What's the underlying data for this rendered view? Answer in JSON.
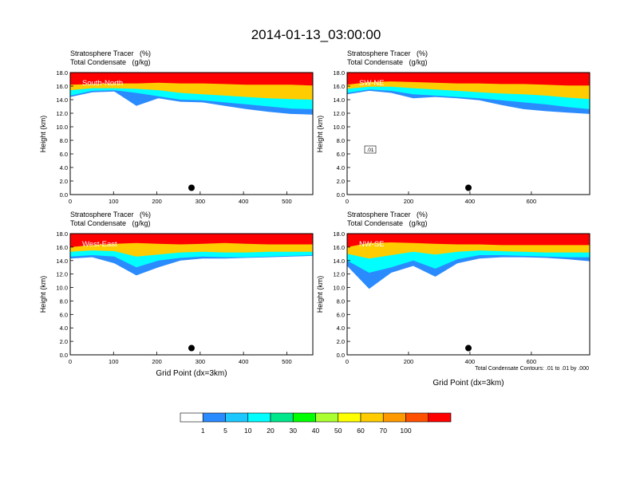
{
  "page_title": "2014-01-13_03:00:00",
  "chart_data": [
    {
      "type": "heatmap",
      "field_title": "Stratosphere Tracer   (%)",
      "contour_title": "Total Condensate   (g/kg)",
      "section_label": "South-North",
      "xlabel": "",
      "ylabel": "Height (km)",
      "xlim": [
        0,
        560
      ],
      "ylim": [
        0,
        18
      ],
      "x_ticks": [
        0,
        100,
        200,
        300,
        400,
        500
      ],
      "y_ticks": [
        0.0,
        2.0,
        4.0,
        6.0,
        8.0,
        10.0,
        12.0,
        14.0,
        16.0,
        18.0
      ],
      "marker": {
        "x": 280,
        "y": 1.0
      },
      "contour_labels": [],
      "tracer_bands": [
        {
          "level": 100,
          "x": [
            0,
            560
          ],
          "base": [
            16.2,
            16.3,
            16.4,
            16.4,
            16.5,
            16.4,
            16.4,
            16.3,
            16.2,
            16.2,
            16.2,
            16.1
          ]
        },
        {
          "level": 60,
          "x": [
            0,
            560
          ],
          "base": [
            15.4,
            15.7,
            15.7,
            15.6,
            15.4,
            15.0,
            14.8,
            14.6,
            14.4,
            14.2,
            14.1,
            14.0
          ]
        },
        {
          "level": 20,
          "x": [
            0,
            560
          ],
          "base": [
            14.6,
            15.3,
            15.4,
            15.0,
            14.5,
            14.0,
            13.9,
            13.6,
            13.3,
            13.0,
            12.7,
            12.6
          ]
        },
        {
          "level": 1,
          "x": [
            0,
            560
          ],
          "base": [
            14.4,
            15.1,
            15.2,
            13.1,
            14.2,
            13.7,
            13.6,
            13.1,
            12.6,
            12.2,
            11.9,
            11.8
          ]
        }
      ]
    },
    {
      "type": "heatmap",
      "field_title": "Stratosphere Tracer   (%)",
      "contour_title": "Total Condensate   (g/kg)",
      "section_label": "SW-NE",
      "xlabel": "",
      "ylabel": "Height (km)",
      "xlim": [
        0,
        790
      ],
      "ylim": [
        0,
        18
      ],
      "x_ticks": [
        0,
        200,
        400,
        600
      ],
      "y_ticks": [
        0.0,
        2.0,
        4.0,
        6.0,
        8.0,
        10.0,
        12.0,
        14.0,
        16.0,
        18.0
      ],
      "marker": {
        "x": 395,
        "y": 1.0
      },
      "contour_labels": [
        ".01"
      ],
      "tracer_bands": [
        {
          "level": 100,
          "x": [
            0,
            790
          ],
          "base": [
            16.2,
            16.6,
            16.7,
            16.6,
            16.5,
            16.4,
            16.4,
            16.3,
            16.3,
            16.2,
            16.1,
            16.1
          ]
        },
        {
          "level": 60,
          "x": [
            0,
            790
          ],
          "base": [
            15.6,
            15.9,
            15.9,
            15.7,
            15.5,
            15.3,
            15.1,
            14.9,
            14.8,
            14.6,
            14.3,
            14.1
          ]
        },
        {
          "level": 20,
          "x": [
            0,
            790
          ],
          "base": [
            15.0,
            15.5,
            15.3,
            14.8,
            14.6,
            14.4,
            14.2,
            13.9,
            13.6,
            13.3,
            12.9,
            12.6
          ]
        },
        {
          "level": 1,
          "x": [
            0,
            790
          ],
          "base": [
            14.8,
            15.3,
            15.0,
            14.2,
            14.4,
            14.2,
            13.9,
            13.2,
            12.6,
            12.3,
            12.1,
            11.9
          ]
        }
      ]
    },
    {
      "type": "heatmap",
      "field_title": "Stratosphere Tracer   (%)",
      "contour_title": "Total Condensate   (g/kg)",
      "section_label": "West-East",
      "xlabel": "Grid Point (dx=3km)",
      "ylabel": "Height (km)",
      "xlim": [
        0,
        560
      ],
      "ylim": [
        0,
        18
      ],
      "x_ticks": [
        0,
        100,
        200,
        300,
        400,
        500
      ],
      "y_ticks": [
        0.0,
        2.0,
        4.0,
        6.0,
        8.0,
        10.0,
        12.0,
        14.0,
        16.0,
        18.0
      ],
      "marker": {
        "x": 280,
        "y": 1.0
      },
      "contour_labels": [],
      "tracer_bands": [
        {
          "level": 100,
          "x": [
            0,
            560
          ],
          "base": [
            16.0,
            16.3,
            16.5,
            16.6,
            16.5,
            16.4,
            16.5,
            16.6,
            16.5,
            16.4,
            16.4,
            16.4
          ]
        },
        {
          "level": 60,
          "x": [
            0,
            560
          ],
          "base": [
            15.3,
            15.5,
            15.4,
            14.6,
            14.9,
            15.2,
            15.3,
            15.2,
            15.2,
            15.3,
            15.3,
            15.3
          ]
        },
        {
          "level": 20,
          "x": [
            0,
            560
          ],
          "base": [
            14.6,
            14.8,
            14.6,
            13.0,
            14.0,
            14.4,
            14.6,
            14.5,
            14.5,
            14.6,
            14.7,
            14.8
          ]
        },
        {
          "level": 1,
          "x": [
            0,
            560
          ],
          "base": [
            14.3,
            14.5,
            13.6,
            11.8,
            13.0,
            14.0,
            14.3,
            14.3,
            14.4,
            14.5,
            14.6,
            14.7
          ]
        }
      ]
    },
    {
      "type": "heatmap",
      "field_title": "Stratosphere Tracer   (%)",
      "contour_title": "Total Condensate   (g/kg)",
      "section_label": "NW-SE",
      "xlabel": "Grid Point (dx=3km)",
      "ylabel": "Height (km)",
      "xlim": [
        0,
        790
      ],
      "ylim": [
        0,
        18
      ],
      "x_ticks": [
        0,
        200,
        400,
        600
      ],
      "y_ticks": [
        0.0,
        2.0,
        4.0,
        6.0,
        8.0,
        10.0,
        12.0,
        14.0,
        16.0,
        18.0
      ],
      "marker": {
        "x": 395,
        "y": 1.0
      },
      "contour_labels": [],
      "footnote": "Total Condensate Contours: .01 to .01 by .000",
      "tracer_bands": [
        {
          "level": 100,
          "x": [
            0,
            790
          ],
          "base": [
            16.0,
            16.6,
            16.7,
            16.6,
            16.5,
            16.4,
            16.4,
            16.3,
            16.3,
            16.3,
            16.3,
            16.3
          ]
        },
        {
          "level": 60,
          "x": [
            0,
            790
          ],
          "base": [
            15.0,
            14.3,
            14.8,
            15.3,
            14.9,
            15.3,
            15.5,
            15.4,
            15.3,
            15.2,
            15.2,
            15.2
          ]
        },
        {
          "level": 20,
          "x": [
            0,
            790
          ],
          "base": [
            14.0,
            12.2,
            13.0,
            14.0,
            12.8,
            14.2,
            14.8,
            14.8,
            14.7,
            14.6,
            14.5,
            14.5
          ]
        },
        {
          "level": 1,
          "x": [
            0,
            790
          ],
          "base": [
            13.2,
            9.8,
            12.2,
            13.2,
            11.6,
            13.6,
            14.3,
            14.5,
            14.5,
            14.4,
            14.2,
            13.9
          ]
        }
      ]
    }
  ],
  "colorbar": {
    "labels": [
      "1",
      "5",
      "10",
      "20",
      "30",
      "40",
      "50",
      "60",
      "70",
      "100"
    ],
    "colors": [
      "#ffffff",
      "#2a8bff",
      "#1cc8ff",
      "#00ffff",
      "#00e68a",
      "#00ff00",
      "#aaff30",
      "#ffff00",
      "#ffcc00",
      "#ff9900",
      "#ff5000",
      "#ff0000"
    ]
  }
}
